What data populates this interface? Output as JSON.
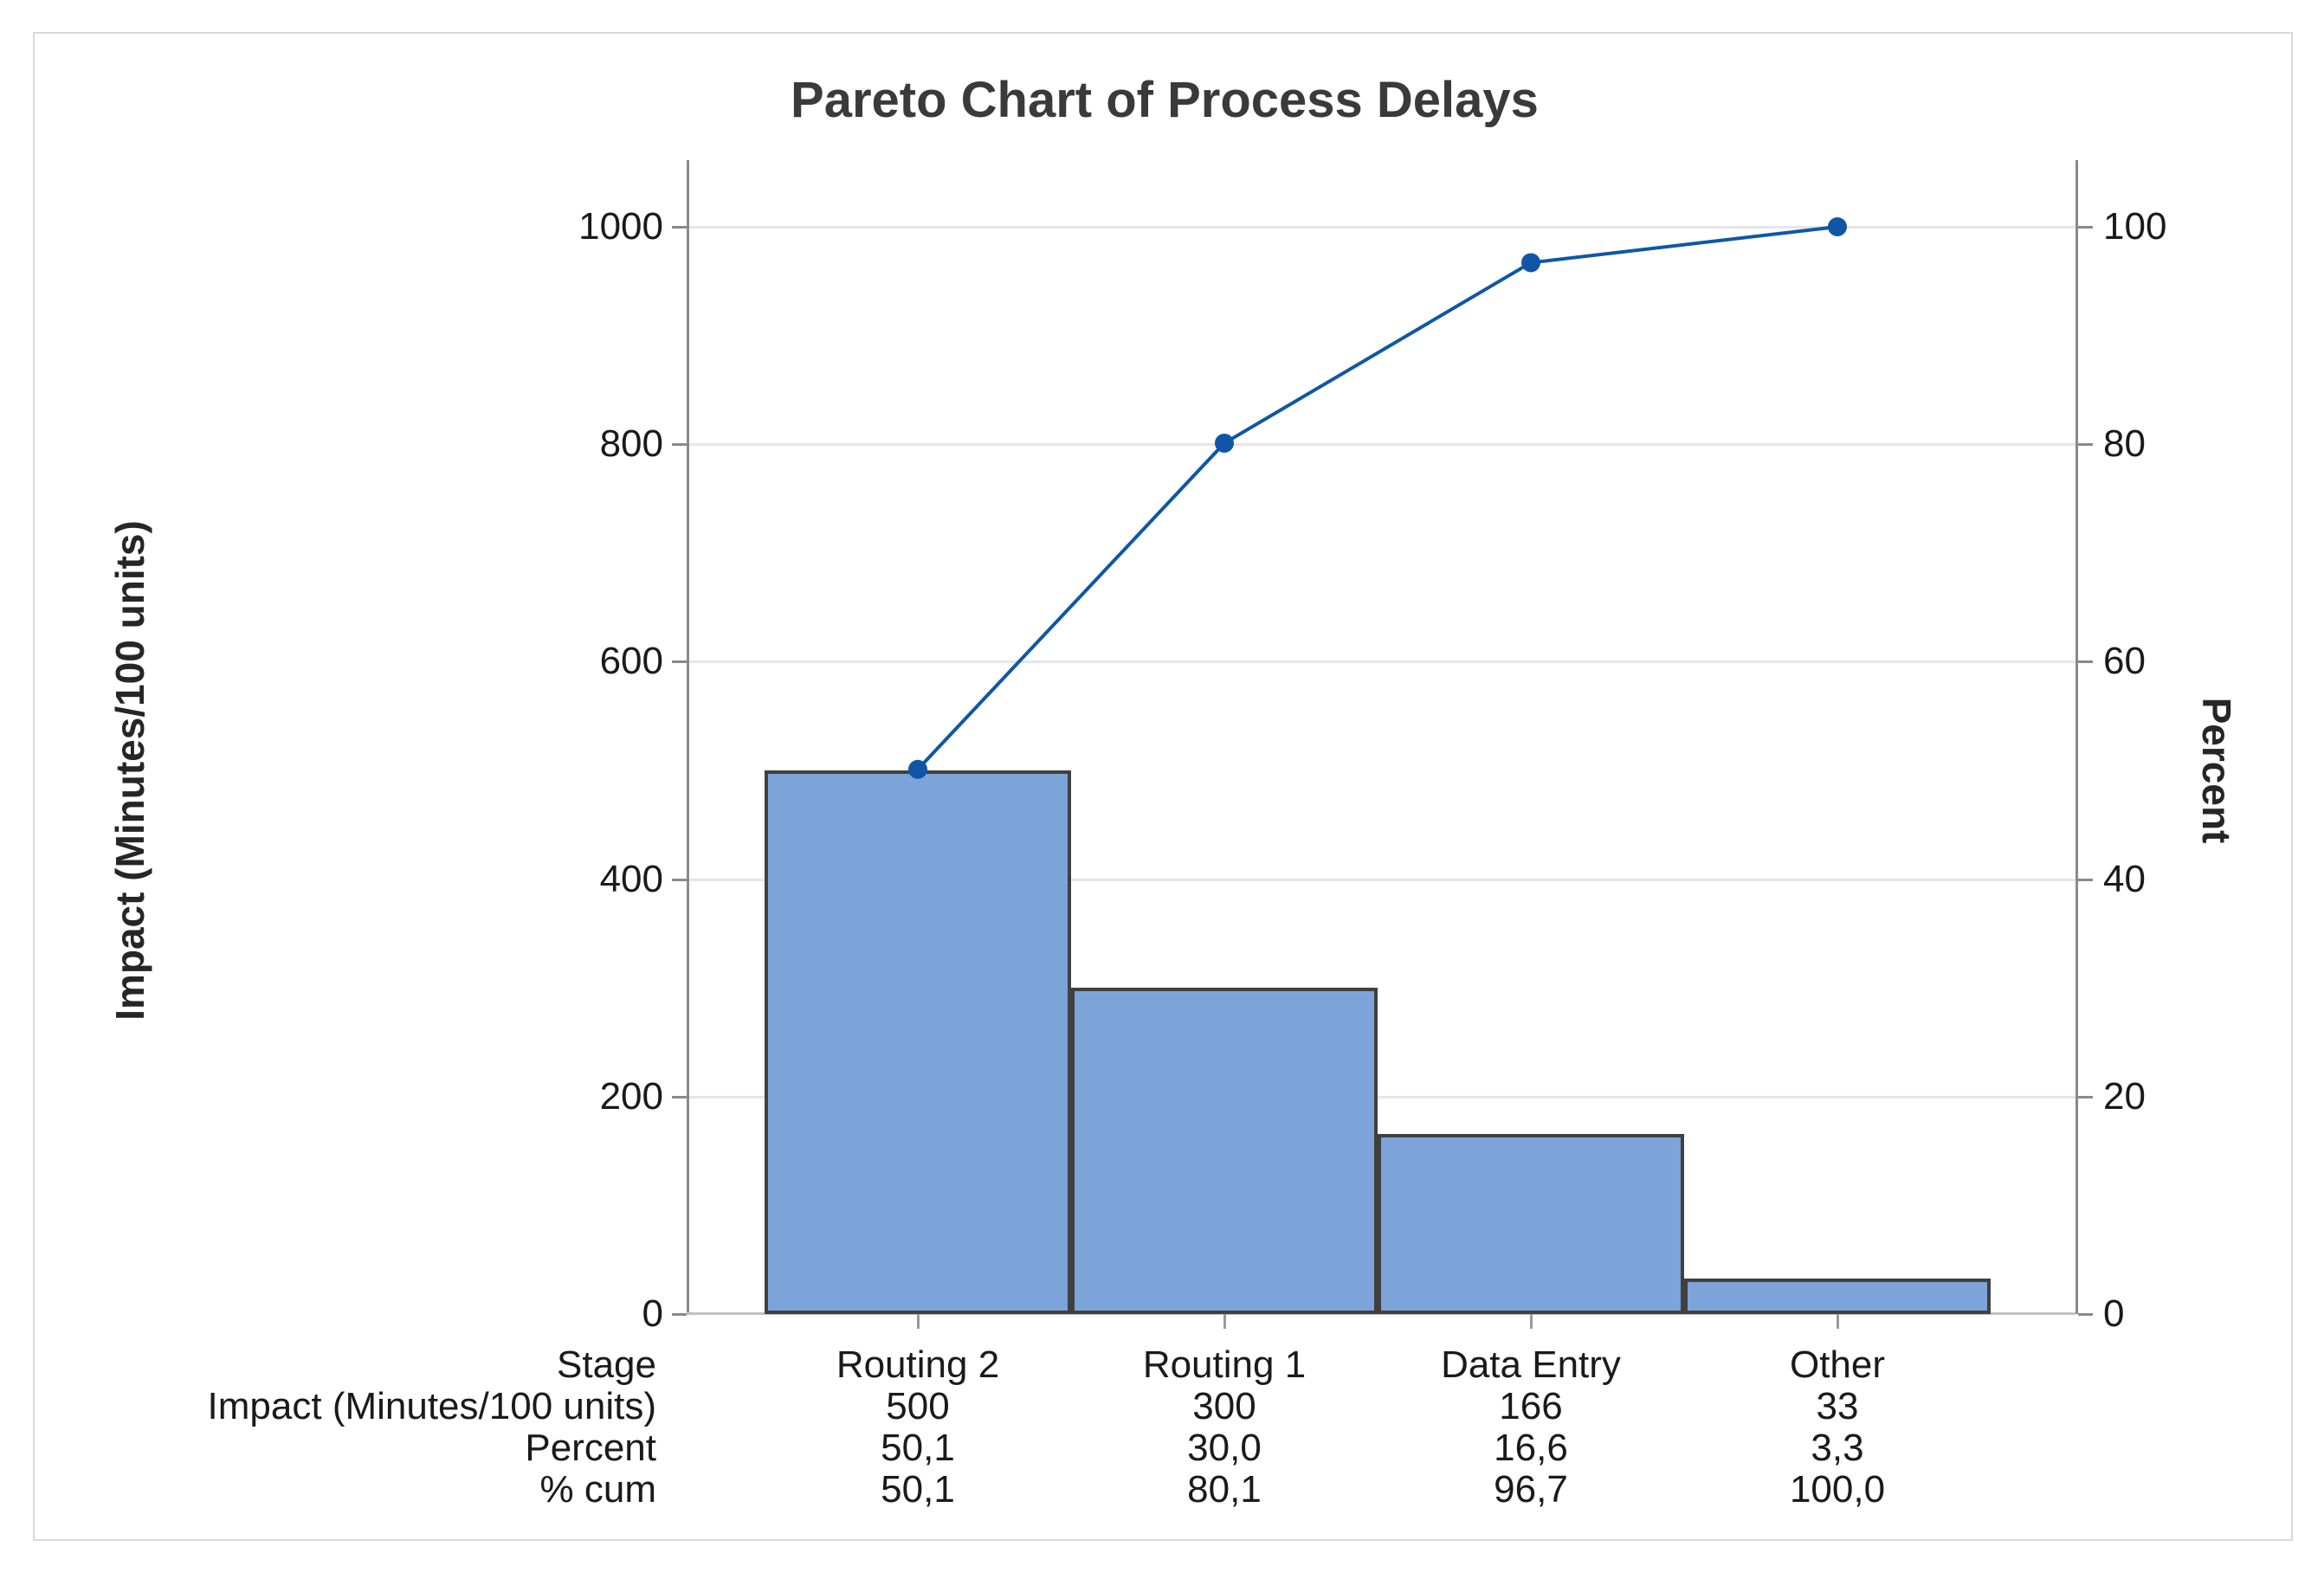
{
  "figure": {
    "title": "Pareto Chart of Process Delays"
  },
  "axes": {
    "left": {
      "title": "Impact (Minutes/100 units)",
      "ticks": [
        "1000",
        "800",
        "600",
        "400",
        "200",
        "0"
      ],
      "tick_values": [
        1000,
        800,
        600,
        400,
        200,
        0
      ]
    },
    "right": {
      "title": "Percent",
      "ticks": [
        "100",
        "80",
        "60",
        "40",
        "20",
        "0"
      ],
      "tick_values": [
        100,
        80,
        60,
        40,
        20,
        0
      ]
    }
  },
  "table": {
    "row_labels": [
      "Stage",
      "Impact (Minutes/100 units)",
      "Percent",
      "% cum"
    ],
    "rows": [
      [
        "Routing 2",
        "Routing 1",
        "Data Entry",
        "Other"
      ],
      [
        "500",
        "300",
        "166",
        "33"
      ],
      [
        "50,1",
        "30,0",
        "16,6",
        "3,3"
      ],
      [
        "50,1",
        "80,1",
        "96,7",
        "100,0"
      ]
    ]
  },
  "colors": {
    "bar_fill": "#7ca4d9",
    "bar_border": "#404040",
    "cumulative_line": "#0f57a6",
    "gridline": "#e6e6e6",
    "axis_line": "#8a8a8a",
    "baseline": "#c2c2c2",
    "title_text": "#3a3a3a",
    "tick_text": "#1a1a1a",
    "figure_border": "#d9d9d9"
  },
  "chart_data": {
    "type": "bar",
    "subtype": "pareto",
    "title": "Pareto Chart of Process Delays",
    "categories": [
      "Routing 2",
      "Routing 1",
      "Data Entry",
      "Other"
    ],
    "series": [
      {
        "name": "Impact (Minutes/100 units)",
        "type": "bar",
        "values": [
          500,
          300,
          166,
          33
        ],
        "axis": "left"
      },
      {
        "name": "% cum",
        "type": "line",
        "values": [
          50.1,
          80.1,
          96.7,
          100.0
        ],
        "axis": "right"
      }
    ],
    "percent_per_category": [
      50.1,
      30.0,
      16.6,
      3.3
    ],
    "xlabel": "Stage",
    "ylabel": "Impact (Minutes/100 units)",
    "ylabel_right": "Percent",
    "ylim_left": [
      0,
      1000
    ],
    "ylim_right": [
      0,
      100
    ],
    "yticks_left": [
      0,
      200,
      400,
      600,
      800,
      1000
    ],
    "yticks_right": [
      0,
      20,
      40,
      60,
      80,
      100
    ],
    "grid": "horizontal",
    "legend": "none",
    "decimal_separator": ","
  }
}
